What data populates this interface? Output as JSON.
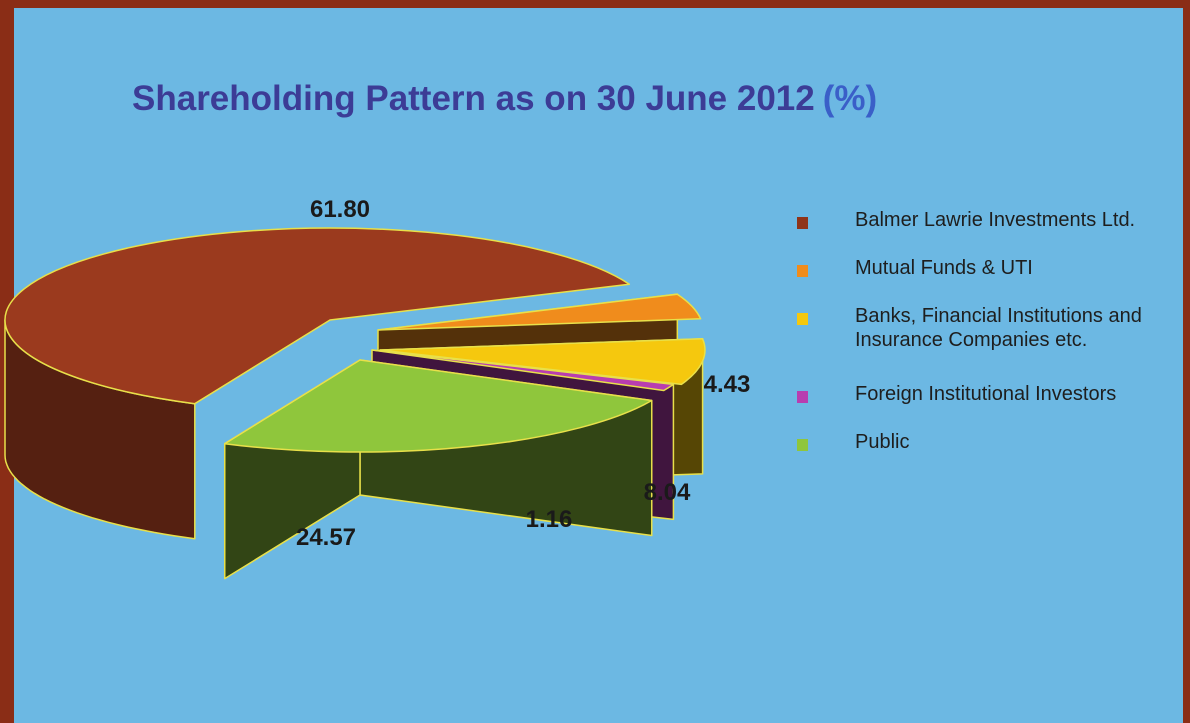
{
  "chart_data": {
    "type": "pie",
    "title": "Shareholding Pattern as on 30 June 2012",
    "title_unit": "(%)",
    "categories": [
      "Balmer Lawrie Investments Ltd.",
      "Mutual Funds & UTI",
      "Banks, Financial Institutions and Insurance Companies etc.",
      "Foreign Institutional Investors",
      "Public"
    ],
    "values": [
      61.8,
      4.43,
      8.04,
      1.16,
      24.57
    ],
    "value_labels": [
      "61.80",
      "4.43",
      "8.04",
      "1.16",
      "24.57"
    ],
    "colors": [
      "#9b3a1e",
      "#f08c1c",
      "#f5c80e",
      "#b83db0",
      "#8fc63c"
    ],
    "style": "3d-exploded",
    "legend_position": "right"
  },
  "legend": {
    "items": [
      {
        "label": "Balmer Lawrie Investments Ltd.",
        "color": "#8f3419"
      },
      {
        "label": "Mutual Funds & UTI",
        "color": "#f08c1c"
      },
      {
        "label_line1": "Banks, Financial Institutions and",
        "label_line2": "Insurance Companies etc.",
        "color": "#f5c80e"
      },
      {
        "label": "Foreign Institutional Investors",
        "color": "#b83db0"
      },
      {
        "label": "Public",
        "color": "#8fc63c"
      }
    ]
  },
  "colors": {
    "background": "#6cb8e3",
    "border": "#8a2d16",
    "title": "#3c3c96",
    "title_unit": "#3a5fc8"
  }
}
